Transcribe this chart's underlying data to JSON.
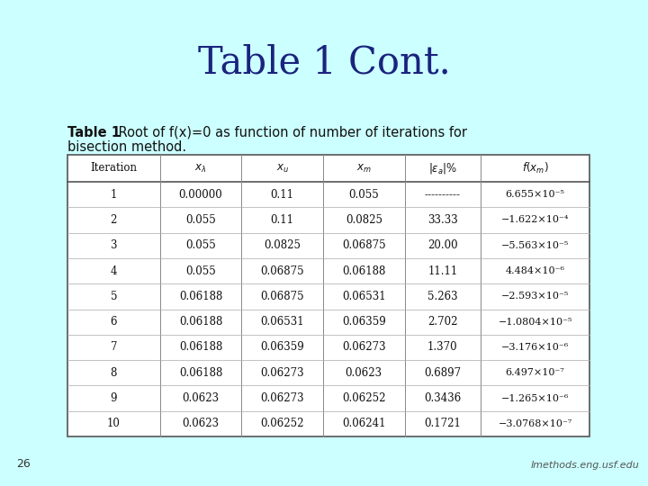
{
  "title": "Table 1 Cont.",
  "bg_color": "#ccffff",
  "title_color": "#1a237e",
  "text_color": "#111111",
  "footer": "lmethods.eng.usf.edu",
  "page_num": "26",
  "fxm_values": [
    "6.655×10⁻⁵",
    "−1.622×10⁻⁴",
    "−5.563×10⁻⁵",
    "4.484×10⁻⁶",
    "−2.593×10⁻⁵",
    "−1.0804×10⁻⁵",
    "−3.176×10⁻⁶",
    "6.497×10⁻⁷",
    "−1.265×10⁻⁶",
    "−3.0768×10⁻⁷"
  ],
  "rows": [
    [
      "1",
      "0.00000",
      "0.11",
      "0.055",
      "----------"
    ],
    [
      "2",
      "0.055",
      "0.11",
      "0.0825",
      "33.33"
    ],
    [
      "3",
      "0.055",
      "0.0825",
      "0.06875",
      "20.00"
    ],
    [
      "4",
      "0.055",
      "0.06875",
      "0.06188",
      "11.11"
    ],
    [
      "5",
      "0.06188",
      "0.06875",
      "0.06531",
      "5.263"
    ],
    [
      "6",
      "0.06188",
      "0.06531",
      "0.06359",
      "2.702"
    ],
    [
      "7",
      "0.06188",
      "0.06359",
      "0.06273",
      "1.370"
    ],
    [
      "8",
      "0.06188",
      "0.06273",
      "0.0623",
      "0.6897"
    ],
    [
      "9",
      "0.0623",
      "0.06273",
      "0.06252",
      "0.3436"
    ],
    [
      "10",
      "0.0623",
      "0.06252",
      "0.06241",
      "0.1721"
    ]
  ]
}
